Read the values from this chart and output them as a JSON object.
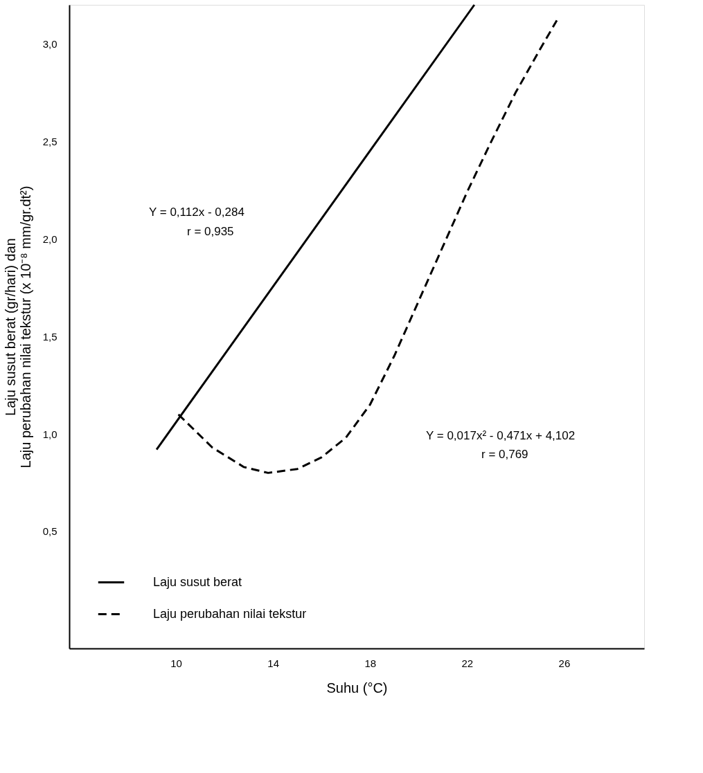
{
  "chart_data": {
    "type": "line",
    "xlabel": "Suhu (°C)",
    "ylabel": [
      "Laju susut berat  (gr/hari) dan",
      "Laju perubahan nilai tekstur (x 10⁻⁸ mm/gr.dt²)"
    ],
    "xlim": [
      5.6,
      29.3
    ],
    "ylim": [
      -0.1,
      3.2
    ],
    "xticks": [
      10,
      14,
      18,
      22,
      26
    ],
    "yticks": [
      {
        "value": 0.5,
        "label": "0,5"
      },
      {
        "value": 1.0,
        "label": "1,0"
      },
      {
        "value": 1.5,
        "label": "1,5"
      },
      {
        "value": 2.0,
        "label": "2,0"
      },
      {
        "value": 2.5,
        "label": "2,5"
      },
      {
        "value": 3.0,
        "label": "3,0"
      }
    ],
    "grid": false,
    "legend": "bottom left",
    "marker": "none",
    "series": [
      {
        "name": "Laju susut berat",
        "color": "#000000",
        "line_style": "solid",
        "x": [
          9.2,
          22.3
        ],
        "values": [
          0.92,
          3.2
        ]
      },
      {
        "name": "Laju perubahan nilai tekstur",
        "color": "#000000",
        "line_style": "dashed",
        "x": [
          10.1,
          11.5,
          12.8,
          13.8,
          15,
          16,
          17,
          18,
          19,
          20,
          21,
          22,
          23,
          24,
          25,
          25.7
        ],
        "values": [
          1.1,
          0.93,
          0.83,
          0.8,
          0.82,
          0.88,
          0.98,
          1.15,
          1.4,
          1.68,
          1.96,
          2.24,
          2.5,
          2.75,
          2.97,
          3.12
        ]
      }
    ],
    "annotations": [
      "Y = 0,112x - 0,284",
      "r = 0,935",
      "Y = 0,017x² - 0,471x + 4,102",
      "r = 0,769"
    ]
  }
}
